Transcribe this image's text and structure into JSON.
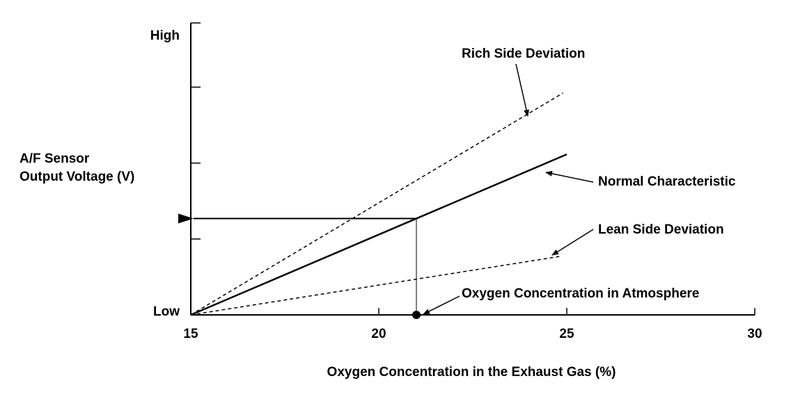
{
  "chart_data": {
    "type": "line",
    "title": "",
    "xlabel": "Oxygen Concentration in the Exhaust Gas (%)",
    "ylabel_lines": [
      "A/F Sensor",
      "Output Voltage (V)"
    ],
    "xlim": [
      15,
      30
    ],
    "xticks": [
      15,
      20,
      25,
      30
    ],
    "ylim": [
      0,
      1
    ],
    "ytick_labels": {
      "bottom": "Low",
      "top": "High"
    },
    "yminor_ticks": [
      0.26,
      0.52,
      0.78
    ],
    "series": [
      {
        "name": "Rich Side Deviation",
        "style": "dashed",
        "x": [
          15,
          24.9
        ],
        "y": [
          0,
          0.76
        ]
      },
      {
        "name": "Normal Characteristic",
        "style": "solid",
        "x": [
          15,
          25
        ],
        "y": [
          0,
          0.55
        ]
      },
      {
        "name": "Lean Side Deviation",
        "style": "dashed",
        "x": [
          15,
          24.8
        ],
        "y": [
          0,
          0.2
        ]
      }
    ],
    "marker": {
      "label": "Oxygen Concentration in Atmosphere",
      "x": 21,
      "y_on_normal": 0.33
    },
    "grid": false,
    "legend": "none"
  }
}
